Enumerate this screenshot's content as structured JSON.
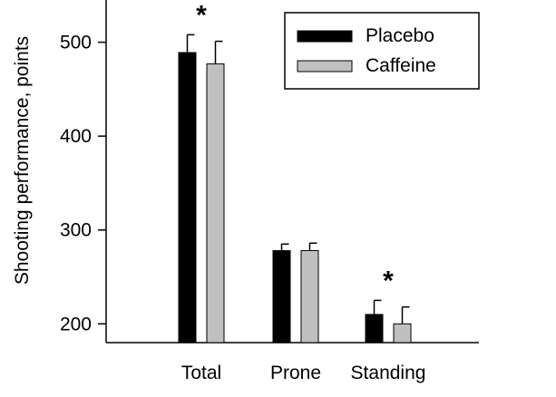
{
  "chart_data": {
    "type": "bar",
    "categories": [
      "Total",
      "Prone",
      "Standing"
    ],
    "ylabel": "Shooting performance, points",
    "xlabel": "",
    "ylim": [
      180,
      545
    ],
    "yticks": [
      200,
      300,
      400,
      500
    ],
    "grid": false,
    "legend_position": "top-right",
    "series": [
      {
        "name": "Placebo",
        "color": "#000000",
        "values": [
          489,
          278,
          210
        ],
        "errors": [
          19,
          7,
          15
        ]
      },
      {
        "name": "Caffeine",
        "color": "#c0c0c0",
        "values": [
          477,
          278,
          200
        ],
        "errors": [
          24,
          8,
          18
        ]
      }
    ],
    "annotations": [
      {
        "category": "Total",
        "text": "*"
      },
      {
        "category": "Standing",
        "text": "*"
      }
    ]
  }
}
